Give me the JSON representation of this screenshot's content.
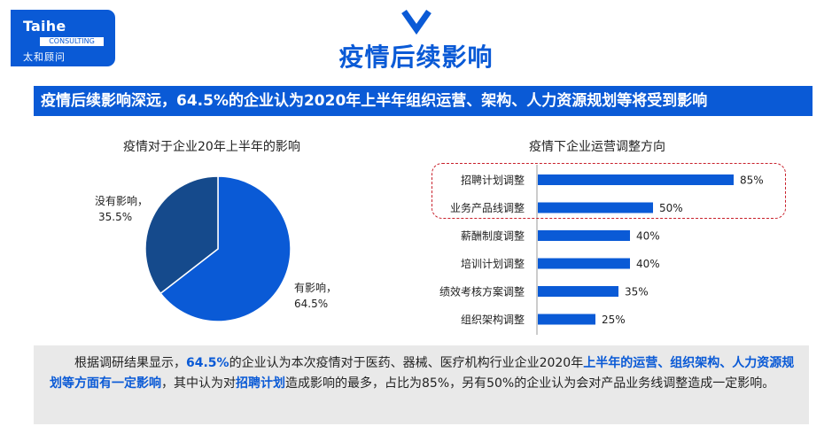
{
  "logo": {
    "en": "Taihe",
    "tag": "CONSULTING",
    "cn": "太和顾问"
  },
  "page_title": "疫情后续影响",
  "subtitle": "疫情后续影响深远，64.5%的企业认为2020年上半年组织运营、架构、人力资源规划等将受到影响",
  "colors": {
    "brand": "#0a5ad6",
    "pie_major": "#0a5ad6",
    "pie_minor": "#154a8c",
    "bar": "#0a5ad6",
    "highlight_border": "#c81f2a",
    "summary_bg": "#e9e9e9"
  },
  "pie": {
    "title": "疫情对于企业20年上半年的影响",
    "slices": [
      {
        "label_line1": "有影响，",
        "label_line2": "64.5%"
      },
      {
        "label_line1": "没有影响，",
        "label_line2": "35.5%"
      }
    ]
  },
  "bars": {
    "title": "疫情下企业运营调整方向",
    "highlighted_count": 2
  },
  "chart_data": [
    {
      "type": "pie",
      "title": "疫情对于企业20年上半年的影响",
      "categories": [
        "有影响",
        "没有影响"
      ],
      "values": [
        64.5,
        35.5
      ],
      "unit": "%"
    },
    {
      "type": "bar",
      "orientation": "horizontal",
      "title": "疫情下企业运营调整方向",
      "categories": [
        "招聘计划调整",
        "业务产品线调整",
        "薪酬制度调整",
        "培训计划调整",
        "绩效考核方案调整",
        "组织架构调整"
      ],
      "values": [
        85,
        50,
        40,
        40,
        35,
        25
      ],
      "value_labels": [
        "85%",
        "50%",
        "40%",
        "40%",
        "35%",
        "25%"
      ],
      "xlim": [
        0,
        100
      ],
      "grid": false
    }
  ],
  "summary": {
    "p1": "根据调研结果显示，",
    "h1": "64.5%",
    "p2": "的企业认为本次疫情对于医药、器械、医疗机构行业企业2020年",
    "h2": "上半年的运营、组织架构、人力资源规划等方面有一定影响",
    "p3": "，其中认为对",
    "h3": "招聘计划",
    "p4": "造成影响的最多，占比为85%，另有50%的企业认为会对产品业务线调整造成一定影响。"
  }
}
